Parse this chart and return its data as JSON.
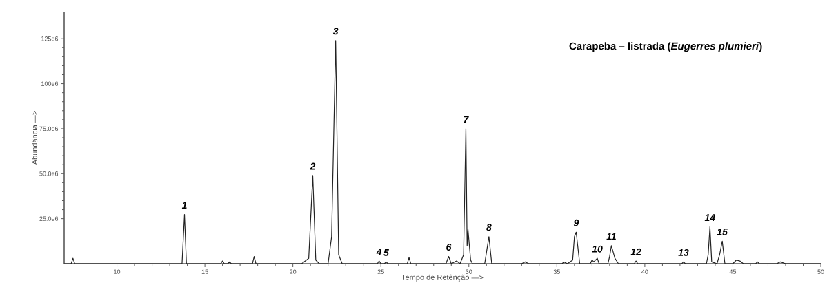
{
  "chart_data": {
    "type": "line",
    "title": "Carapeba – listrada (*Eugerres plumieri*)",
    "xlabel": "Tempo de Retênção —>",
    "ylabel": "Abundância —>",
    "xlim": [
      7,
      50
    ],
    "ylim": [
      0,
      140000000
    ],
    "xticks": [
      10,
      15,
      20,
      25,
      30,
      35,
      40,
      45,
      50
    ],
    "yticks": [
      {
        "value": 25000000,
        "label": "25.0e6"
      },
      {
        "value": 50000000,
        "label": "50.0e6"
      },
      {
        "value": 75000000,
        "label": "75.0e6"
      },
      {
        "value": 100000000,
        "label": "100e6"
      },
      {
        "value": 125000000,
        "label": "125e6"
      }
    ],
    "marker": "none",
    "series": [
      {
        "color": "#222222",
        "x": [
          7.0,
          7.4,
          7.5,
          7.6,
          13.7,
          13.84,
          13.95,
          15.9,
          16.0,
          16.1,
          16.3,
          16.4,
          16.5,
          17.7,
          17.8,
          17.9,
          20.5,
          20.9,
          21.13,
          21.3,
          21.5,
          22.0,
          22.2,
          22.43,
          22.6,
          22.8,
          24.8,
          24.9,
          25.0,
          25.2,
          25.3,
          25.4,
          26.5,
          26.6,
          26.7,
          28.7,
          28.85,
          29.0,
          29.3,
          29.5,
          29.7,
          29.83,
          29.9,
          29.95,
          30.1,
          30.2,
          30.9,
          31.14,
          31.3,
          33.0,
          33.2,
          33.4,
          35.3,
          35.4,
          35.6,
          35.9,
          36.0,
          36.1,
          36.3,
          36.9,
          37.0,
          37.1,
          37.3,
          37.4,
          37.9,
          38.0,
          38.1,
          38.3,
          38.5,
          39.4,
          39.5,
          39.6,
          42.1,
          42.2,
          42.3,
          43.5,
          43.6,
          43.7,
          43.8,
          44.1,
          44.25,
          44.4,
          44.55,
          45.0,
          45.2,
          45.4,
          45.6,
          46.3,
          46.4,
          46.5,
          47.5,
          47.7,
          48.0,
          50.0
        ],
        "values": [
          0,
          0,
          3000000,
          0,
          0,
          27300000,
          0,
          0,
          1500000,
          0,
          0,
          1000000,
          0,
          0,
          4000000,
          0,
          0,
          3000000,
          49000000,
          2000000,
          0,
          0,
          15000000,
          124000000,
          5000000,
          0,
          0,
          1500000,
          0,
          0,
          1000000,
          0,
          0,
          3500000,
          0,
          0,
          4000000,
          0,
          1500000,
          0,
          5000000,
          75000000,
          10000000,
          19000000,
          2000000,
          0,
          0,
          15000000,
          0,
          0,
          1000000,
          0,
          0,
          1000000,
          0,
          2000000,
          15000000,
          17500000,
          0,
          0,
          2000000,
          1000000,
          3000000,
          0,
          0,
          4000000,
          10000000,
          3000000,
          0,
          0,
          1500000,
          0,
          0,
          1000000,
          0,
          0,
          5000000,
          20500000,
          1000000,
          0,
          5000000,
          12500000,
          0,
          0,
          2000000,
          1500000,
          0,
          0,
          1000000,
          0,
          0,
          1000000,
          0,
          0
        ]
      }
    ],
    "annotations": [
      {
        "text": "1",
        "x": 13.84,
        "y": 27300000
      },
      {
        "text": "2",
        "x": 21.13,
        "y": 49000000
      },
      {
        "text": "3",
        "x": 22.43,
        "y": 124000000
      },
      {
        "text": "4",
        "x": 24.9,
        "y": 1500000
      },
      {
        "text": "5",
        "x": 25.3,
        "y": 1000000
      },
      {
        "text": "6",
        "x": 28.85,
        "y": 4000000
      },
      {
        "text": "7",
        "x": 29.83,
        "y": 75000000
      },
      {
        "text": "8",
        "x": 31.14,
        "y": 15000000
      },
      {
        "text": "9",
        "x": 36.1,
        "y": 17500000
      },
      {
        "text": "10",
        "x": 37.3,
        "y": 3000000
      },
      {
        "text": "11",
        "x": 38.1,
        "y": 10000000
      },
      {
        "text": "12",
        "x": 39.5,
        "y": 1500000
      },
      {
        "text": "13",
        "x": 42.2,
        "y": 1000000
      },
      {
        "text": "14",
        "x": 43.7,
        "y": 20500000
      },
      {
        "text": "15",
        "x": 44.4,
        "y": 12500000
      }
    ]
  }
}
